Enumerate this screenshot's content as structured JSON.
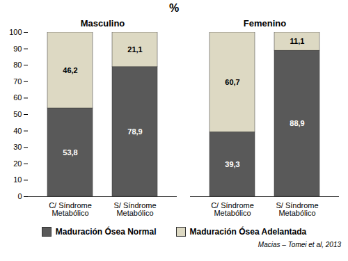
{
  "chart_data": {
    "type": "bar",
    "title": "%",
    "stacked": true,
    "data_labels": true,
    "grid": false,
    "legend": "bottom",
    "source": "Macias – Tomei et al, 2013",
    "groups": [
      "Masculino",
      "Masculino",
      "Femenino",
      "Femenino"
    ],
    "categories": [
      "C/ Síndrome Metabólico",
      "S/ Síndrome Metabólico",
      "C/ Síndrome Metabólico",
      "S/ Síndrome Metabólico"
    ],
    "series": [
      {
        "name": "Maduración Ósea Normal",
        "color": "#595959",
        "values": [
          53.8,
          78.9,
          39.3,
          88.9
        ],
        "value_labels": [
          "53,8",
          "78,9",
          "39,3",
          "88,9"
        ]
      },
      {
        "name": "Maduración Ósea Adelantada",
        "color": "#ddd9c3",
        "values": [
          46.2,
          21.1,
          60.7,
          11.1
        ],
        "value_labels": [
          "46,2",
          "21,1",
          "60,7",
          "11,1"
        ]
      }
    ],
    "ylim": [
      0,
      100
    ],
    "yticks": [
      0,
      10,
      20,
      30,
      40,
      50,
      60,
      70,
      80,
      90,
      100
    ]
  }
}
